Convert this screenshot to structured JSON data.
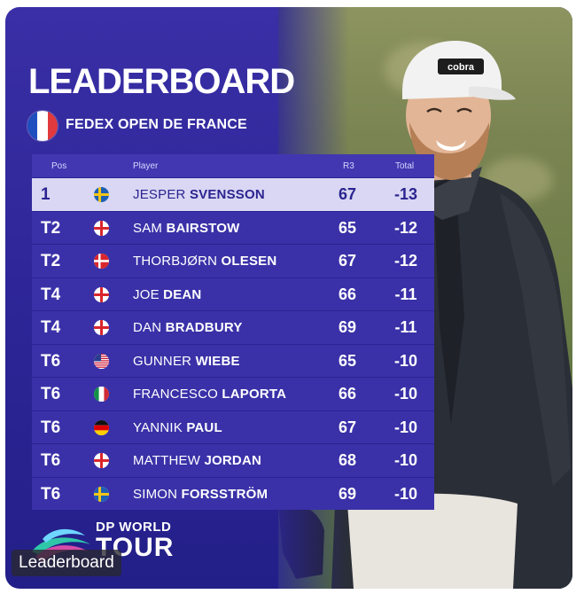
{
  "title": "LEADERBOARD",
  "event": {
    "name": "FEDEX OPEN DE FRANCE",
    "flag_colors": [
      "#1f4fbf",
      "#ffffff",
      "#e03a3e"
    ]
  },
  "columns": {
    "pos": "Pos",
    "player": "Player",
    "r3": "R3",
    "total": "Total"
  },
  "rows": [
    {
      "pos": "1",
      "country": "SWE",
      "first": "JESPER",
      "last": "SVENSSON",
      "r3": "67",
      "total": "-13"
    },
    {
      "pos": "T2",
      "country": "ENG",
      "first": "SAM",
      "last": "BAIRSTOW",
      "r3": "65",
      "total": "-12"
    },
    {
      "pos": "T2",
      "country": "DEN",
      "first": "THORBJØRN",
      "last": "OLESEN",
      "r3": "67",
      "total": "-12"
    },
    {
      "pos": "T4",
      "country": "ENG",
      "first": "JOE",
      "last": "DEAN",
      "r3": "66",
      "total": "-11"
    },
    {
      "pos": "T4",
      "country": "ENG",
      "first": "DAN",
      "last": "BRADBURY",
      "r3": "69",
      "total": "-11"
    },
    {
      "pos": "T6",
      "country": "USA",
      "first": "GUNNER",
      "last": "WIEBE",
      "r3": "65",
      "total": "-10"
    },
    {
      "pos": "T6",
      "country": "ITA",
      "first": "FRANCESCO",
      "last": "LAPORTA",
      "r3": "66",
      "total": "-10"
    },
    {
      "pos": "T6",
      "country": "GER",
      "first": "YANNIK",
      "last": "PAUL",
      "r3": "67",
      "total": "-10"
    },
    {
      "pos": "T6",
      "country": "ENG",
      "first": "MATTHEW",
      "last": "JORDAN",
      "r3": "68",
      "total": "-10"
    },
    {
      "pos": "T6",
      "country": "SWE",
      "first": "SIMON",
      "last": "FORSSTRÖM",
      "r3": "69",
      "total": "-10"
    }
  ],
  "logo": {
    "line1": "DP WORLD",
    "line2": "TOUR"
  },
  "caption": "Leaderboard",
  "colors": {
    "background": "#2c2596",
    "row": "#3a31a8",
    "leader_row": "#d9d7f3",
    "header": "#4237b0"
  }
}
